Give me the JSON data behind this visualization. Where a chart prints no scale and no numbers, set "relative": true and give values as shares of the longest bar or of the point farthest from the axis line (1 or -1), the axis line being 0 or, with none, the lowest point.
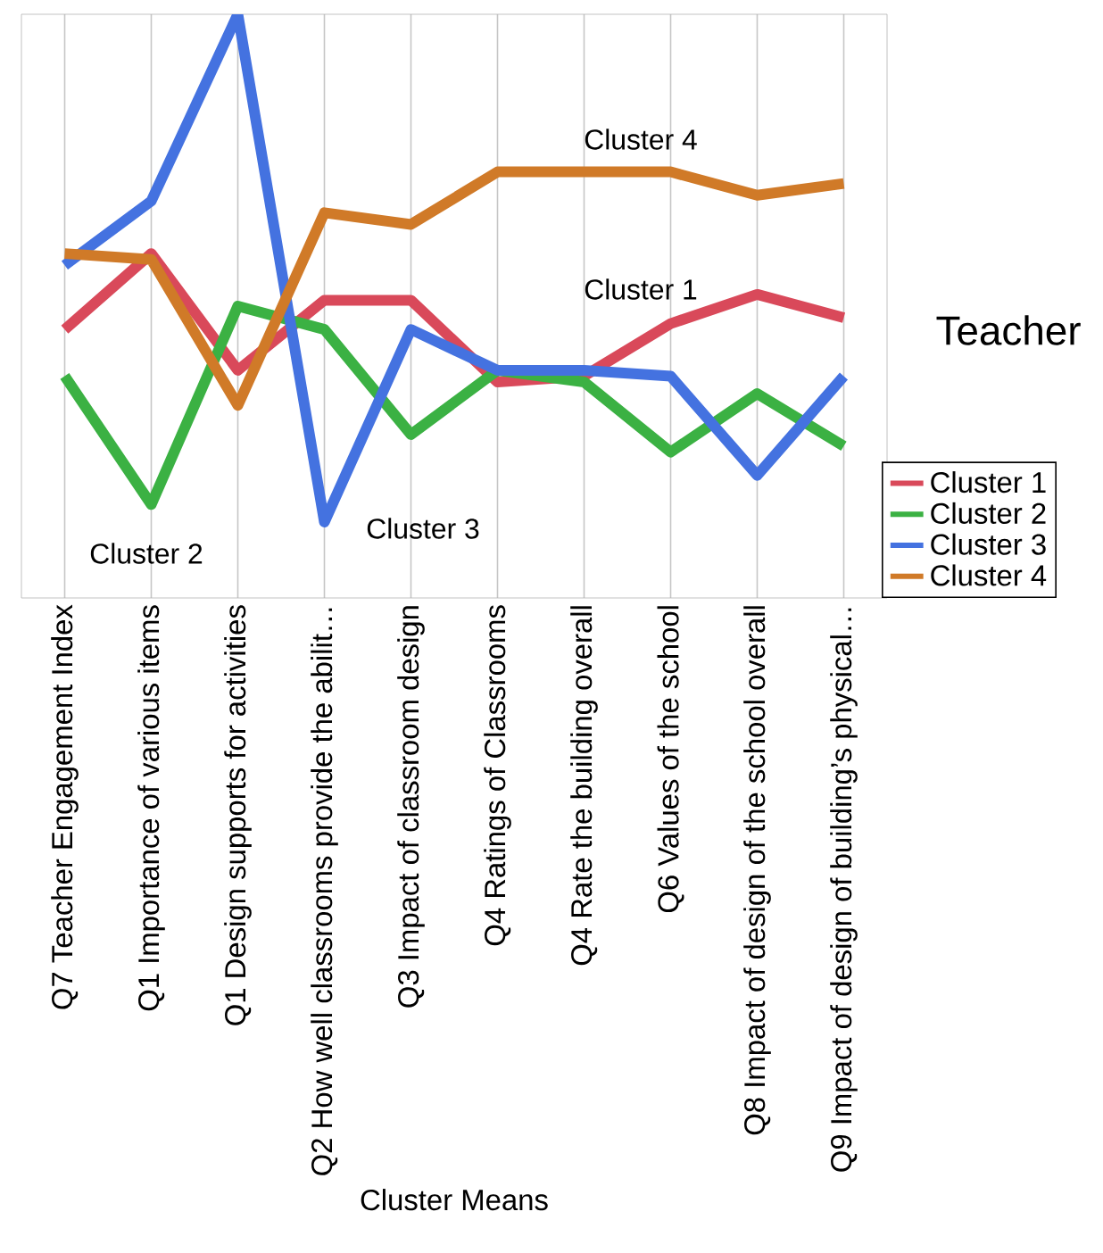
{
  "chart_data": {
    "type": "line",
    "relative": true,
    "xlabel": "Cluster Means",
    "legend_title": "Teacher",
    "legend": "right",
    "grid": "x",
    "line_style": "solid",
    "marker": "none",
    "categories": [
      "Q7 Teacher Engagement Index",
      "Q1 Importance of various items",
      "Q1 Design supports for activities",
      "Q2 How well classrooms provide the abilit…",
      "Q3 Impact of classroom design",
      "Q4 Ratings of Classrooms",
      "Q4 Rate the building overall",
      "Q6 Values of the school",
      "Q8 Impact of design of the school overall",
      "Q9 Impact of design of building’s physical…"
    ],
    "series": [
      {
        "name": "Cluster 1",
        "color": "#d9495a",
        "values": [
          0.46,
          0.59,
          0.39,
          0.51,
          0.51,
          0.37,
          0.38,
          0.47,
          0.52,
          0.48
        ]
      },
      {
        "name": "Cluster 2",
        "color": "#3bb143",
        "values": [
          0.38,
          0.16,
          0.5,
          0.46,
          0.28,
          0.39,
          0.37,
          0.25,
          0.35,
          0.26
        ]
      },
      {
        "name": "Cluster 3",
        "color": "#4472e0",
        "values": [
          0.57,
          0.68,
          1,
          0.13,
          0.46,
          0.39,
          0.39,
          0.38,
          0.21,
          0.38
        ]
      },
      {
        "name": "Cluster 4",
        "color": "#d07a28",
        "values": [
          0.59,
          0.58,
          0.33,
          0.66,
          0.64,
          0.73,
          0.73,
          0.73,
          0.69,
          0.71
        ]
      }
    ],
    "annotations": [
      "Cluster 4",
      "Cluster 1",
      "Cluster 2",
      "Cluster 3"
    ]
  }
}
